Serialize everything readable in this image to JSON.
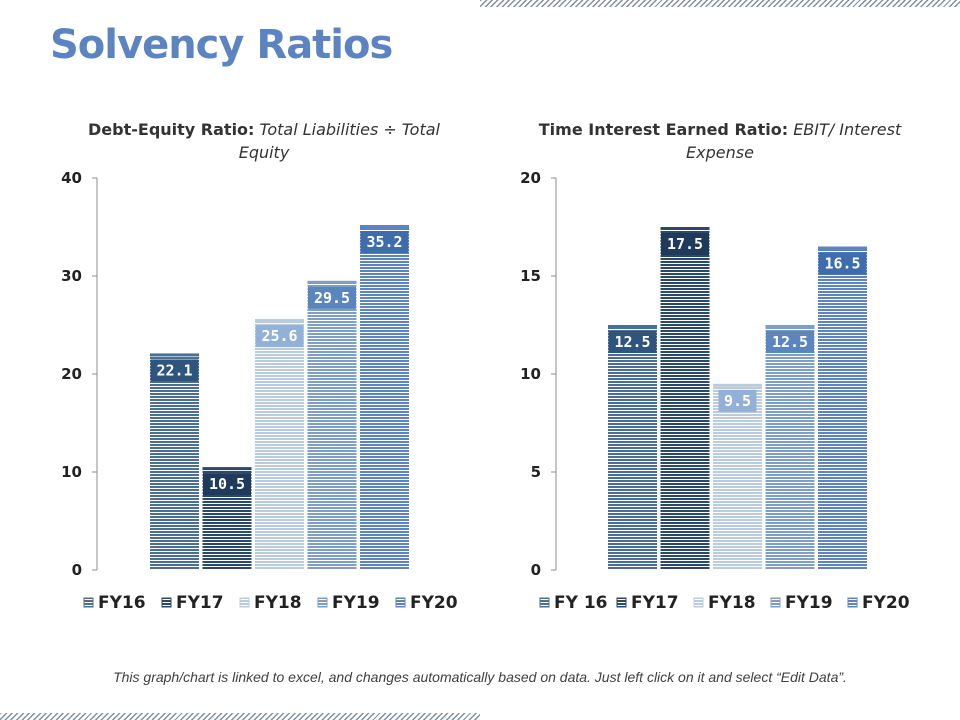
{
  "page": {
    "title": "Solvency Ratios",
    "footnote": "This graph/chart is linked to excel, and changes automatically based on data. Just left click on it and select “Edit Data”."
  },
  "chart_data": [
    {
      "type": "bar",
      "title_bold": "Debt-Equity Ratio:",
      "title_italic": "Total Liabilities ÷ Total Equity",
      "categories": [
        "FY16",
        "FY17",
        "FY18",
        "FY19",
        "FY20"
      ],
      "values": [
        22.1,
        10.5,
        25.6,
        29.5,
        35.2
      ],
      "legend": [
        "FY16",
        "FY17",
        "FY18",
        "FY19",
        "FY20"
      ],
      "ylim": [
        0,
        40
      ],
      "yticks": [
        0,
        10,
        20,
        30,
        40
      ],
      "colors": [
        "#4b6f94",
        "#2b4a6b",
        "#b9cbe1",
        "#7d9fc6",
        "#5b84c0"
      ],
      "label_colors": [
        "#2f557e",
        "#1f3a5a",
        "#93b1d6",
        "#5a86bd",
        "#3f6cab"
      ],
      "legend_position": "bottom",
      "grid": false
    },
    {
      "type": "bar",
      "title_bold": "Time Interest Earned Ratio:",
      "title_italic": "EBIT/ Interest Expense",
      "categories": [
        "FY 16",
        "FY17",
        "FY18",
        "FY19",
        "FY20"
      ],
      "values": [
        12.5,
        17.5,
        9.5,
        12.5,
        16.5
      ],
      "legend": [
        "FY 16",
        "FY17",
        "FY18",
        "FY19",
        "FY20"
      ],
      "ylim": [
        0,
        20
      ],
      "yticks": [
        0,
        5,
        10,
        15,
        20
      ],
      "colors": [
        "#4b6f94",
        "#2b4a6b",
        "#b9cbe1",
        "#7d9fc6",
        "#5b84c0"
      ],
      "label_colors": [
        "#2f557e",
        "#1f3a5a",
        "#93b1d6",
        "#5a86bd",
        "#3f6cab"
      ],
      "legend_position": "bottom",
      "grid": false
    }
  ]
}
